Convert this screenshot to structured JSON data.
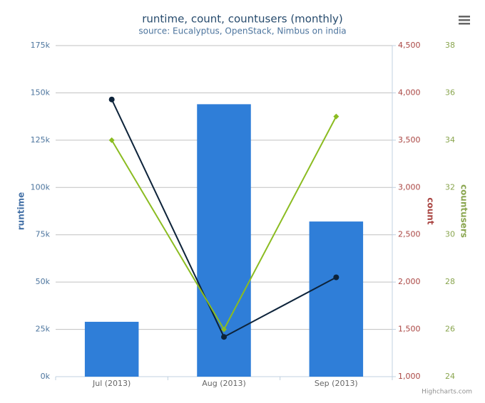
{
  "chart_data": {
    "type": "combo",
    "title": "runtime, count, countusers (monthly)",
    "subtitle": "source: Eucalyptus, OpenStack, Nimbus on india",
    "credits": "Highcharts.com",
    "categories": [
      "Jul (2013)",
      "Aug (2013)",
      "Sep (2013)"
    ],
    "y_label": "runtime",
    "y2_label": "count",
    "y3_label": "countusers",
    "ylim": [
      0,
      175000
    ],
    "yticks": [
      {
        "value": 0,
        "label": "0k"
      },
      {
        "value": 25000,
        "label": "25k"
      },
      {
        "value": 50000,
        "label": "50k"
      },
      {
        "value": 75000,
        "label": "75k"
      },
      {
        "value": 100000,
        "label": "100k"
      },
      {
        "value": 125000,
        "label": "125k"
      },
      {
        "value": 150000,
        "label": "150k"
      },
      {
        "value": 175000,
        "label": "175k"
      }
    ],
    "y2lim": [
      1000,
      4500
    ],
    "y2ticks": [
      {
        "value": 1000,
        "label": "1,000"
      },
      {
        "value": 1500,
        "label": "1,500"
      },
      {
        "value": 2000,
        "label": "2,000"
      },
      {
        "value": 2500,
        "label": "2,500"
      },
      {
        "value": 3000,
        "label": "3,000"
      },
      {
        "value": 3500,
        "label": "3,500"
      },
      {
        "value": 4000,
        "label": "4,000"
      },
      {
        "value": 4500,
        "label": "4,500"
      }
    ],
    "y3lim": [
      24,
      38
    ],
    "y3ticks": [
      24,
      26,
      28,
      30,
      32,
      34,
      36,
      38
    ],
    "grid": true,
    "series": [
      {
        "name": "runtime",
        "type": "bar",
        "axis": "y",
        "color": "#2f7ed8",
        "values": [
          29000,
          144000,
          82000
        ]
      },
      {
        "name": "count",
        "type": "line",
        "axis": "y2",
        "color": "#0d233a",
        "values": [
          3930,
          1420,
          2050
        ]
      },
      {
        "name": "countusers",
        "type": "line",
        "axis": "y3",
        "color": "#8bbc21",
        "values": [
          34,
          26,
          35
        ]
      }
    ]
  }
}
